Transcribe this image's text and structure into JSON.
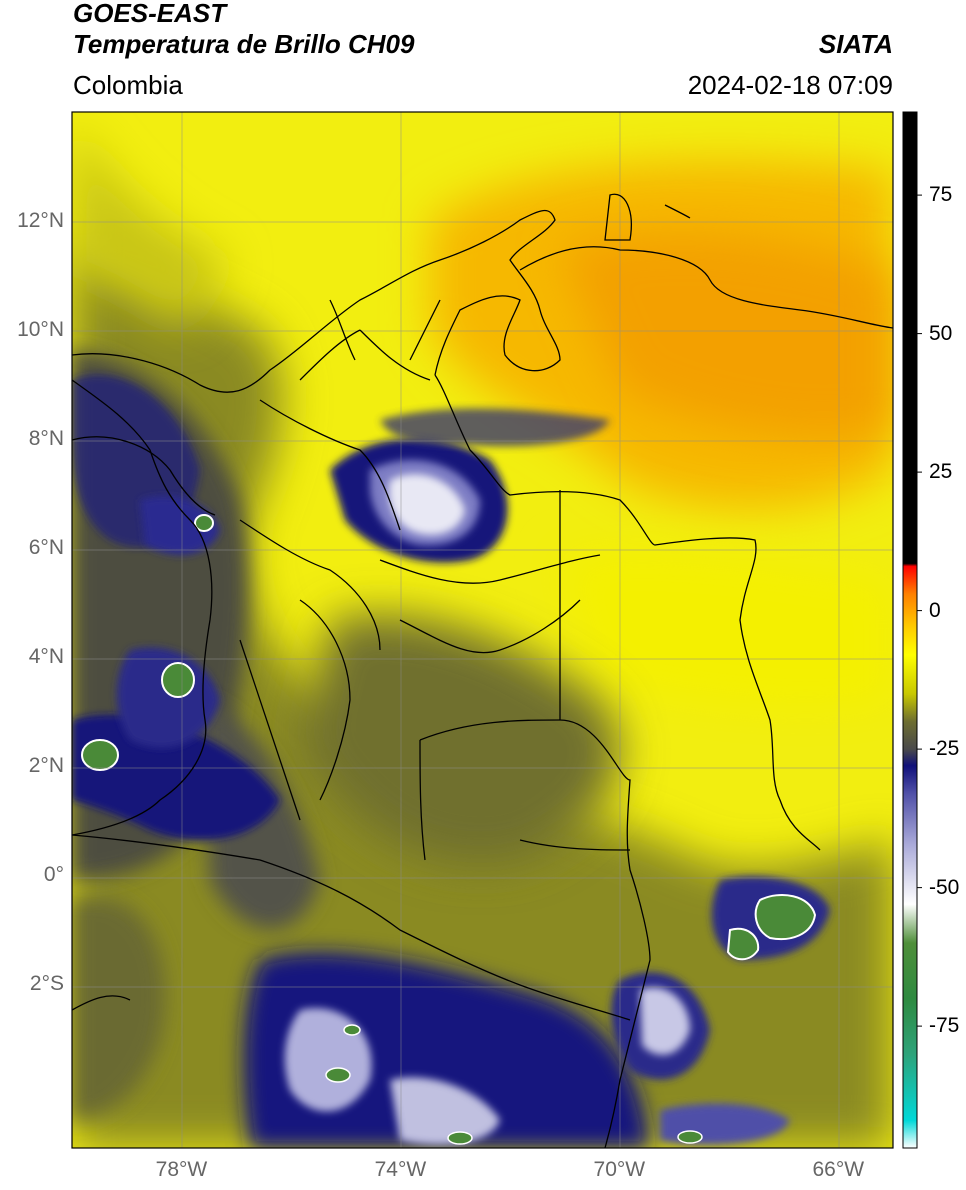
{
  "header": {
    "satellite": "GOES-EAST",
    "product": "Temperatura de Brillo CH09",
    "region": "Colombia",
    "agency": "SIATA",
    "datetime": "2024-02-18 07:09"
  },
  "map": {
    "lon_range": [
      -80,
      -65
    ],
    "lat_range": [
      -5,
      14
    ],
    "lon_ticks": [
      {
        "value": -78,
        "label": "78°W"
      },
      {
        "value": -74,
        "label": "74°W"
      },
      {
        "value": -70,
        "label": "70°W"
      },
      {
        "value": -66,
        "label": "66°W"
      }
    ],
    "lat_ticks": [
      {
        "value": 12,
        "label": "12°N"
      },
      {
        "value": 10,
        "label": "10°N"
      },
      {
        "value": 8,
        "label": "8°N"
      },
      {
        "value": 6,
        "label": "6°N"
      },
      {
        "value": 4,
        "label": "4°N"
      },
      {
        "value": 2,
        "label": "2°N"
      },
      {
        "value": 0,
        "label": "0°"
      },
      {
        "value": -2,
        "label": "2°S"
      }
    ]
  },
  "colorbar": {
    "range": [
      -97,
      90
    ],
    "ticks": [
      {
        "value": 75,
        "label": "75"
      },
      {
        "value": 50,
        "label": "50"
      },
      {
        "value": 25,
        "label": "25"
      },
      {
        "value": 0,
        "label": "0"
      },
      {
        "value": -25,
        "label": "-25"
      },
      {
        "value": -50,
        "label": "-50"
      },
      {
        "value": -75,
        "label": "-75"
      }
    ],
    "stops": [
      {
        "value": -97,
        "color": "#ffffff"
      },
      {
        "value": -92,
        "color": "#00d8d8"
      },
      {
        "value": -80,
        "color": "#2ea37a"
      },
      {
        "value": -70,
        "color": "#2e8a40"
      },
      {
        "value": -60,
        "color": "#4f8f3a"
      },
      {
        "value": -53,
        "color": "#ffffff"
      },
      {
        "value": -42,
        "color": "#a8a8d8"
      },
      {
        "value": -33,
        "color": "#5050a8"
      },
      {
        "value": -28,
        "color": "#10107a"
      },
      {
        "value": -25,
        "color": "#4a4a4a"
      },
      {
        "value": -20,
        "color": "#6e6e30"
      },
      {
        "value": -15,
        "color": "#c8c800"
      },
      {
        "value": -8,
        "color": "#ffff00"
      },
      {
        "value": -3,
        "color": "#ffcc00"
      },
      {
        "value": 3,
        "color": "#ff8000"
      },
      {
        "value": 8,
        "color": "#ff0000"
      },
      {
        "value": 8.5,
        "color": "#000000"
      },
      {
        "value": 90,
        "color": "#000000"
      }
    ]
  }
}
